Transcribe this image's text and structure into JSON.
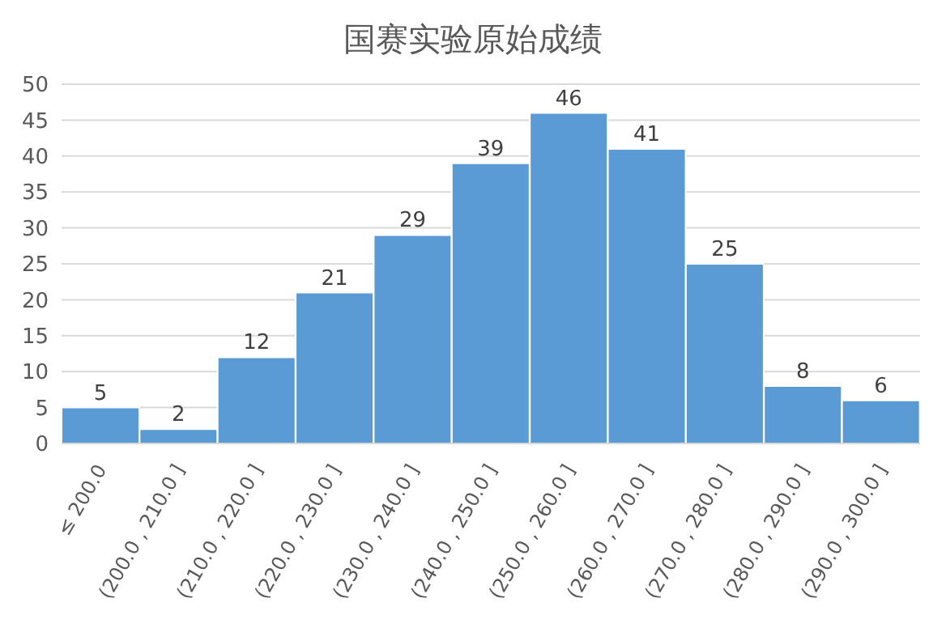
{
  "chart_data": {
    "type": "bar",
    "title": "国赛实验原始成绩",
    "categories": [
      "≤ 200.0",
      "(200.0 , 210.0 ]",
      "(210.0 , 220.0 ]",
      "(220.0 , 230.0 ]",
      "(230.0 , 240.0 ]",
      "(240.0 , 250.0 ]",
      "(250.0 , 260.0 ]",
      "(260.0 , 270.0 ]",
      "(270.0 , 280.0 ]",
      "(280.0 , 290.0 ]",
      "(290.0 , 300.0 ]"
    ],
    "values": [
      5,
      2,
      12,
      21,
      29,
      39,
      46,
      41,
      25,
      8,
      6
    ],
    "color": "#5b9bd5",
    "ylim": [
      0,
      50
    ],
    "yticks": [
      0,
      5,
      10,
      15,
      20,
      25,
      30,
      35,
      40,
      45,
      50
    ],
    "grid": "y",
    "data_labels": true
  }
}
